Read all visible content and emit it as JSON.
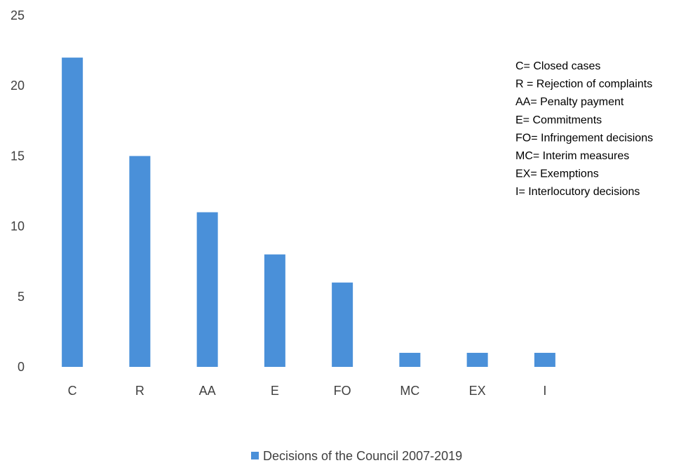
{
  "chart_data": {
    "type": "bar",
    "title": "",
    "xlabel": "",
    "ylabel": "",
    "categories": [
      "C",
      "R",
      "AA",
      "E",
      "FO",
      "MC",
      "EX",
      "I"
    ],
    "series": [
      {
        "name": "Decisions of the Council 2007-2019",
        "values": [
          22,
          15,
          11,
          8,
          6,
          1,
          1,
          1
        ]
      }
    ],
    "ylim": [
      0,
      25
    ],
    "yticks": [
      "0",
      "5",
      "10",
      "15",
      "20",
      "25"
    ],
    "grid": false,
    "legend_position": "bottom-center",
    "bar_color": "#4a90d9",
    "annotations": [
      "C= Closed cases",
      "R = Rejection of complaints",
      "AA= Penalty payment",
      "E= Commitments",
      "FO= Infringement decisions",
      "MC= Interim measures",
      "EX= Exemptions",
      "I= Interlocutory decisions"
    ]
  }
}
